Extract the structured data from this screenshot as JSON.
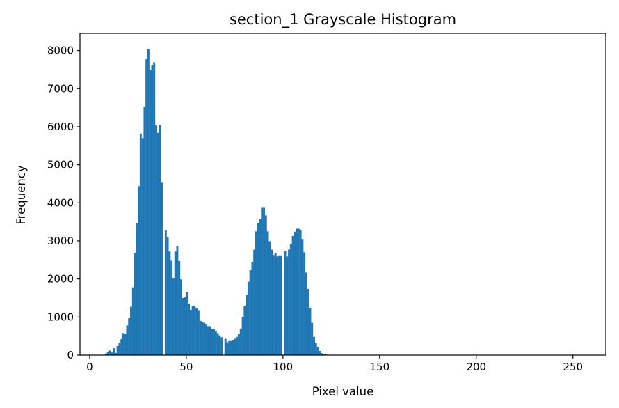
{
  "chart_data": {
    "type": "bar",
    "title": "section_1 Grayscale Histogram",
    "xlabel": "Pixel value",
    "ylabel": "Frequency",
    "xlim": [
      -5,
      267
    ],
    "ylim": [
      0,
      8450
    ],
    "xticks": [
      0,
      50,
      100,
      150,
      200,
      250
    ],
    "yticks": [
      0,
      1000,
      2000,
      3000,
      4000,
      5000,
      6000,
      7000,
      8000
    ],
    "bar_color": "#1f77b4",
    "bins": 256,
    "bin_start": 0,
    "values": [
      0,
      0,
      0,
      0,
      0,
      0,
      0,
      10,
      40,
      80,
      120,
      70,
      180,
      60,
      240,
      330,
      420,
      580,
      550,
      780,
      970,
      1270,
      1780,
      2690,
      3460,
      4440,
      5820,
      5700,
      6520,
      7770,
      8030,
      7500,
      7610,
      7690,
      6040,
      5840,
      6050,
      4530,
      0,
      3280,
      3090,
      2720,
      2480,
      2010,
      2720,
      2860,
      2470,
      1990,
      1500,
      1520,
      1660,
      1350,
      1190,
      1280,
      1290,
      1240,
      1180,
      900,
      860,
      850,
      810,
      760,
      760,
      690,
      680,
      620,
      580,
      520,
      470,
      0,
      430,
      340,
      370,
      370,
      390,
      430,
      480,
      550,
      700,
      990,
      1300,
      1580,
      1930,
      2230,
      2440,
      2770,
      3250,
      3470,
      3570,
      3870,
      3870,
      3670,
      3250,
      2990,
      2770,
      2630,
      2680,
      2590,
      2620,
      2620,
      0,
      2730,
      2590,
      2770,
      2920,
      3130,
      3240,
      3320,
      3320,
      3280,
      3050,
      2700,
      2170,
      1740,
      1240,
      850,
      480,
      310,
      210,
      110,
      50,
      30,
      20,
      10,
      10,
      5,
      5,
      5,
      5,
      5,
      5,
      5,
      5,
      5,
      5,
      5,
      5,
      5,
      5,
      5,
      5,
      5,
      5,
      5,
      5,
      5,
      5,
      5,
      5,
      5,
      5,
      5,
      5,
      5,
      5,
      5,
      5,
      5,
      5,
      5,
      5,
      5,
      5,
      5,
      5,
      5,
      5,
      5,
      5,
      5,
      5,
      5,
      5,
      5,
      5,
      5,
      5,
      5,
      5,
      5,
      5,
      5,
      5,
      5,
      5,
      5,
      5,
      5,
      5,
      5,
      5,
      5,
      5,
      5,
      5,
      5,
      5,
      5,
      5,
      5,
      5,
      5,
      5,
      5,
      5,
      5,
      5,
      5,
      5,
      5,
      5,
      5,
      5,
      5,
      5,
      5,
      5,
      5,
      5,
      5,
      5,
      5,
      5,
      5,
      5,
      5,
      5,
      5,
      5,
      5,
      5,
      5,
      5,
      5,
      5,
      5,
      5,
      5,
      5,
      5,
      5,
      5,
      5,
      5,
      5,
      5,
      5,
      5,
      5,
      5,
      5,
      5,
      5,
      5,
      5,
      5,
      5,
      5,
      5,
      5,
      5,
      5,
      5,
      5,
      5,
      5,
      5,
      5
    ]
  }
}
